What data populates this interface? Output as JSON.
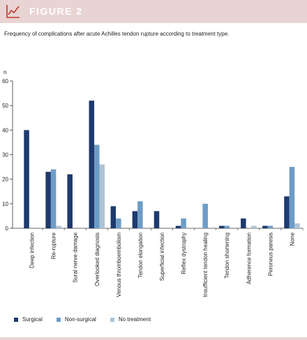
{
  "header": {
    "title": "FIGURE 2",
    "icon": "line-chart-icon",
    "bar_color": "#e9d4d4"
  },
  "subtitle": "Frequency of complications after acute Achilles tendon rupture according to treatment type.",
  "chart_data": {
    "type": "bar",
    "ylabel": "n",
    "ylim": [
      0,
      60
    ],
    "yticks": [
      "0",
      "10",
      "20",
      "30",
      "40",
      "50",
      "60"
    ],
    "grid": false,
    "legend_position": "bottom-left",
    "categories": [
      "Deep infection",
      "Re-rupture",
      "Sural nerve damage",
      "Overlooked diagnosis",
      "Venous thromboembolism",
      "Tendon elongation",
      "Superficial infection",
      "Reflex dystrophy",
      "Insufficient tendon healing",
      "Tendon shortening",
      "Adherence formation",
      "Peroneus paresis",
      "None"
    ],
    "series": [
      {
        "name": "Surgical",
        "color": "#1e3a6e",
        "values": [
          40,
          23,
          22,
          52,
          9,
          7,
          7,
          1,
          0,
          1,
          4,
          1,
          13
        ]
      },
      {
        "name": "Non-surgical",
        "color": "#6d9cc6",
        "values": [
          0,
          24,
          0,
          34,
          4,
          11,
          0,
          4,
          10,
          1,
          0,
          1,
          25
        ]
      },
      {
        "name": "No treatment",
        "color": "#aec3d4",
        "values": [
          0,
          1,
          0,
          26,
          0,
          0,
          0,
          0,
          0,
          0,
          1,
          0,
          2
        ]
      }
    ]
  }
}
